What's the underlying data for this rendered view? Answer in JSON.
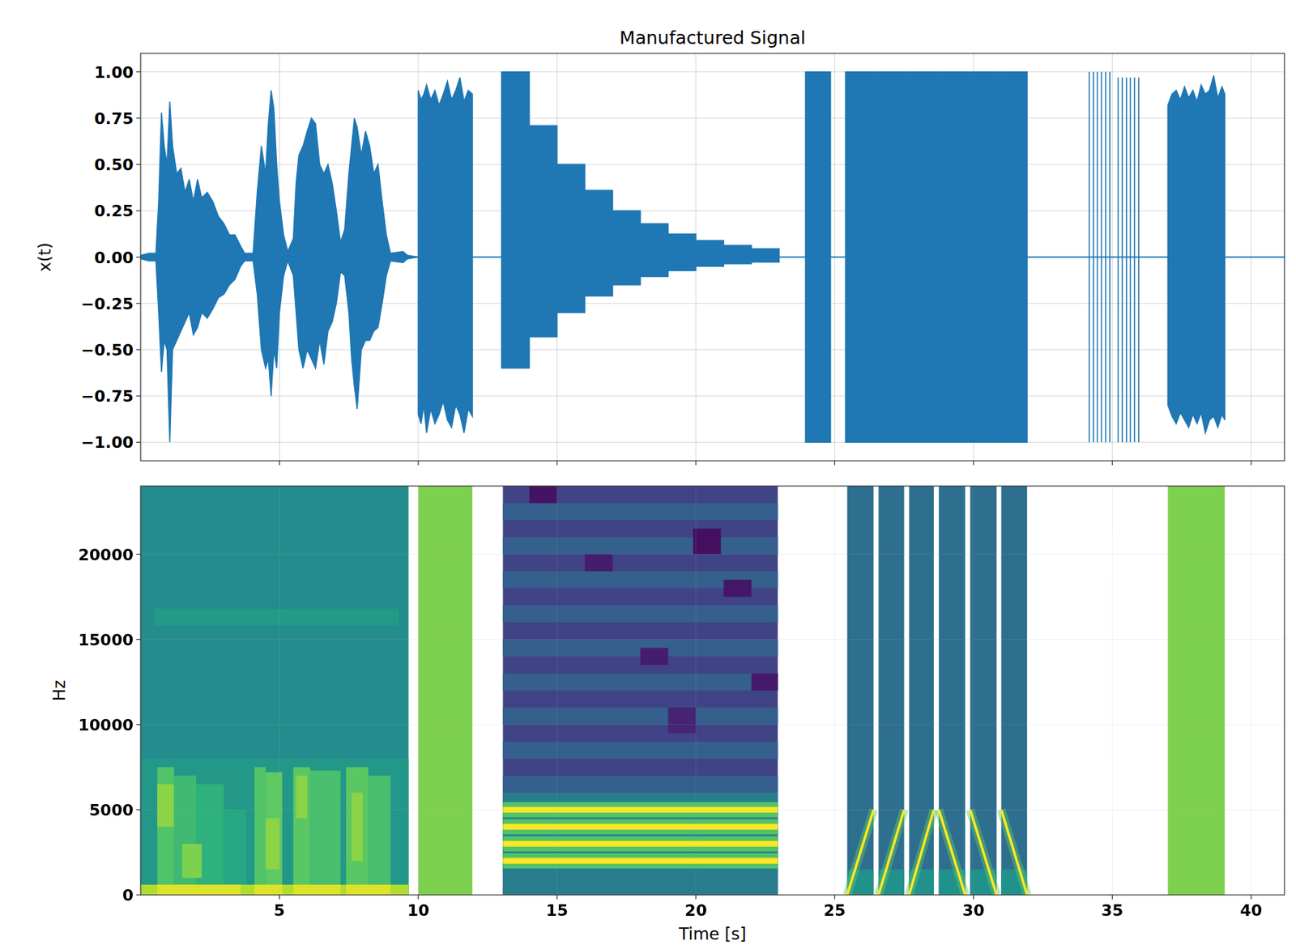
{
  "chart_data": [
    {
      "type": "area",
      "title": "Manufactured Signal",
      "y_label": "x(t)",
      "xlim": [
        0,
        41.2
      ],
      "xticks": [
        5,
        10,
        15,
        20,
        25,
        30,
        35,
        40
      ],
      "ylim": [
        -1.1,
        1.1
      ],
      "yticks": [
        {
          "value": -1,
          "label": "−1.00"
        },
        {
          "value": -0.75,
          "label": "−0.75"
        },
        {
          "value": -0.5,
          "label": "−0.50"
        },
        {
          "value": -0.25,
          "label": "−0.25"
        },
        {
          "value": 0,
          "label": "0.00"
        },
        {
          "value": 0.25,
          "label": "0.25"
        },
        {
          "value": 0.5,
          "label": "0.50"
        },
        {
          "value": 0.75,
          "label": "0.75"
        },
        {
          "value": 1,
          "label": "1.00"
        }
      ],
      "grid": true,
      "tick_labels": "y",
      "color": "#1f77b4",
      "series": [
        {
          "type": "envelope",
          "x": [
            0,
            0.3,
            0.55,
            0.65,
            0.75,
            0.85,
            0.95,
            1.05,
            1.15,
            1.3,
            1.45,
            1.6,
            1.75,
            1.9,
            2.05,
            2.2,
            2.4,
            2.6,
            2.8,
            3.0,
            3.2,
            3.4,
            3.6,
            3.75,
            4.05,
            4.2,
            4.35,
            4.5,
            4.6,
            4.7,
            4.8,
            4.9,
            5.0,
            5.15,
            5.3,
            5.5,
            5.6,
            5.7,
            5.85,
            6.0,
            6.15,
            6.3,
            6.45,
            6.6,
            6.75,
            6.9,
            7.05,
            7.2,
            7.35,
            7.5,
            7.6,
            7.7,
            7.8,
            7.95,
            8.1,
            8.25,
            8.4,
            8.55,
            8.7,
            8.85,
            9.0,
            9.45,
            9.6,
            10.0,
            10.0,
            10.1,
            10.2,
            10.3,
            10.45,
            10.6,
            10.75,
            10.9,
            11.05,
            11.2,
            11.35,
            11.5,
            11.65,
            11.8,
            11.95,
            11.95,
            13,
            13,
            14,
            14,
            15,
            15,
            16,
            16,
            17,
            17,
            18,
            18,
            19,
            19,
            20,
            20,
            21,
            21,
            22,
            22,
            23,
            23,
            23.95,
            23.95,
            24.85,
            24.85,
            25.39,
            25.39,
            26.47,
            26.47,
            26.51,
            26.51,
            27.57,
            27.57,
            27.61,
            27.61,
            28.64,
            28.64,
            28.68,
            28.68,
            29.8,
            29.8,
            29.84,
            29.84,
            30.93,
            30.93,
            30.97,
            30.97,
            31.93,
            31.93,
            37.0,
            37.0,
            37.15,
            37.3,
            37.45,
            37.6,
            37.75,
            37.9,
            38.05,
            38.2,
            38.35,
            38.5,
            38.65,
            38.8,
            38.95,
            39.05,
            39.05,
            41.2
          ],
          "upper": [
            0.01,
            0.02,
            0.02,
            0.3,
            0.78,
            0.6,
            0.5,
            0.84,
            0.6,
            0.45,
            0.48,
            0.35,
            0.42,
            0.3,
            0.42,
            0.32,
            0.35,
            0.3,
            0.22,
            0.18,
            0.12,
            0.12,
            0.06,
            0.02,
            0.02,
            0.35,
            0.6,
            0.45,
            0.72,
            0.9,
            0.8,
            0.5,
            0.3,
            0.12,
            0.03,
            0.1,
            0.4,
            0.55,
            0.6,
            0.68,
            0.75,
            0.72,
            0.5,
            0.45,
            0.5,
            0.4,
            0.25,
            0.08,
            0.15,
            0.45,
            0.6,
            0.75,
            0.7,
            0.55,
            0.68,
            0.6,
            0.45,
            0.5,
            0.3,
            0.12,
            0.02,
            0.03,
            0.01,
            0,
            0.9,
            0.85,
            0.88,
            0.93,
            0.85,
            0.9,
            0.82,
            0.88,
            0.95,
            0.85,
            0.9,
            0.97,
            0.84,
            0.9,
            0.88,
            0,
            0,
            1.0,
            1.0,
            0.71,
            0.71,
            0.5,
            0.5,
            0.36,
            0.36,
            0.25,
            0.25,
            0.18,
            0.18,
            0.125,
            0.125,
            0.09,
            0.09,
            0.063,
            0.063,
            0.045,
            0.045,
            0,
            0,
            1,
            1,
            0,
            0,
            1,
            1,
            0,
            0,
            1,
            1,
            0,
            0,
            1,
            1,
            0,
            0,
            1,
            1,
            0,
            0,
            1,
            1,
            0,
            0,
            1,
            1,
            0,
            0,
            0.82,
            0.88,
            0.9,
            0.85,
            0.92,
            0.86,
            0.9,
            0.84,
            0.93,
            0.88,
            0.9,
            0.98,
            0.86,
            0.92,
            0.88,
            0,
            0
          ],
          "lower": [
            -0.01,
            -0.02,
            -0.02,
            -0.3,
            -0.62,
            -0.45,
            -0.5,
            -1.0,
            -0.5,
            -0.45,
            -0.4,
            -0.35,
            -0.3,
            -0.42,
            -0.38,
            -0.3,
            -0.33,
            -0.28,
            -0.22,
            -0.2,
            -0.15,
            -0.12,
            -0.05,
            -0.02,
            -0.02,
            -0.2,
            -0.5,
            -0.6,
            -0.55,
            -0.75,
            -0.5,
            -0.6,
            -0.3,
            -0.1,
            -0.02,
            -0.1,
            -0.3,
            -0.5,
            -0.6,
            -0.5,
            -0.55,
            -0.6,
            -0.45,
            -0.58,
            -0.4,
            -0.35,
            -0.25,
            -0.08,
            -0.1,
            -0.3,
            -0.55,
            -0.7,
            -0.82,
            -0.5,
            -0.45,
            -0.45,
            -0.4,
            -0.38,
            -0.25,
            -0.1,
            -0.02,
            -0.03,
            -0.01,
            0,
            -0.85,
            -0.9,
            -0.8,
            -0.95,
            -0.82,
            -0.9,
            -0.85,
            -0.78,
            -0.88,
            -0.92,
            -0.8,
            -0.85,
            -0.95,
            -0.82,
            -0.86,
            0,
            0,
            -0.6,
            -0.6,
            -0.43,
            -0.43,
            -0.3,
            -0.3,
            -0.21,
            -0.21,
            -0.15,
            -0.15,
            -0.105,
            -0.105,
            -0.073,
            -0.073,
            -0.05,
            -0.05,
            -0.036,
            -0.036,
            -0.027,
            -0.027,
            0,
            0,
            -1,
            -1,
            0,
            0,
            -1,
            -1,
            0,
            0,
            -1,
            -1,
            0,
            0,
            -1,
            -1,
            0,
            0,
            -1,
            -1,
            0,
            0,
            -1,
            -1,
            0,
            0,
            -1,
            -1,
            0,
            0,
            -0.8,
            -0.86,
            -0.9,
            -0.84,
            -0.88,
            -0.92,
            -0.85,
            -0.9,
            -0.84,
            -0.95,
            -0.88,
            -0.86,
            -0.92,
            -0.85,
            -0.88,
            0,
            0
          ]
        },
        {
          "type": "stem",
          "x": [
            34.17,
            34.32,
            34.46,
            34.61,
            34.76,
            34.91,
            35.21,
            35.36,
            35.51,
            35.65,
            35.8,
            35.95
          ],
          "upper": [
            1,
            1,
            1,
            1,
            1,
            1,
            0.97,
            0.97,
            0.97,
            0.97,
            0.97,
            0.97
          ],
          "lower": [
            -1,
            -1,
            -1,
            -1,
            -1,
            -1,
            -1,
            -1,
            -1,
            -1,
            -1,
            -1
          ]
        }
      ]
    },
    {
      "type": "spectrogram",
      "x_label": "Time [s]",
      "y_label": "Hz",
      "xlim": [
        0,
        41.2
      ],
      "xticks": [
        5,
        10,
        15,
        20,
        25,
        30,
        35,
        40
      ],
      "ylim": [
        0,
        24000
      ],
      "yticks": [
        0,
        5000,
        10000,
        15000,
        20000
      ],
      "grid": true,
      "color": "viridis",
      "zlim": [
        0,
        1
      ],
      "cells": [
        [
          0,
          9.65,
          0,
          24000,
          0.48
        ],
        [
          0,
          9.65,
          0,
          8000,
          0.53
        ],
        [
          0.5,
          9.3,
          15800,
          16800,
          0.54
        ],
        [
          0.6,
          1.2,
          0,
          7500,
          0.72
        ],
        [
          1.2,
          2.0,
          0,
          7000,
          0.68
        ],
        [
          2.0,
          3.0,
          0,
          6500,
          0.64
        ],
        [
          3.0,
          3.8,
          0,
          5000,
          0.6
        ],
        [
          4.1,
          4.5,
          0,
          7500,
          0.72
        ],
        [
          4.5,
          5.1,
          0,
          7200,
          0.75
        ],
        [
          5.5,
          6.1,
          0,
          7500,
          0.74
        ],
        [
          6.1,
          7.2,
          0,
          7300,
          0.7
        ],
        [
          7.4,
          8.2,
          0,
          7500,
          0.74
        ],
        [
          8.2,
          9.0,
          0,
          7000,
          0.7
        ],
        [
          0.6,
          1.2,
          4000,
          6500,
          0.82
        ],
        [
          1.5,
          2.2,
          1000,
          3000,
          0.8
        ],
        [
          4.5,
          5.0,
          1500,
          4500,
          0.82
        ],
        [
          5.6,
          6.0,
          4500,
          7000,
          0.82
        ],
        [
          7.6,
          8.0,
          2000,
          6000,
          0.82
        ],
        [
          0,
          9.65,
          0,
          600,
          0.88
        ],
        [
          0.6,
          3.6,
          0,
          600,
          0.95
        ],
        [
          4.1,
          5.1,
          0,
          600,
          0.95
        ],
        [
          5.5,
          7.2,
          0,
          600,
          0.95
        ],
        [
          7.4,
          9.0,
          0,
          600,
          0.95
        ],
        [
          10.0,
          11.95,
          0,
          24000,
          0.8
        ],
        [
          37.0,
          39.05,
          0,
          24000,
          0.8
        ],
        [
          13.05,
          22.95,
          0,
          24000,
          0.2
        ],
        [
          13.05,
          22.95,
          6000,
          7000,
          0.3
        ],
        [
          13.05,
          22.95,
          8000,
          9000,
          0.3
        ],
        [
          13.05,
          22.95,
          10000,
          11000,
          0.3
        ],
        [
          13.05,
          22.95,
          12000,
          13000,
          0.3
        ],
        [
          13.05,
          22.95,
          14000,
          15000,
          0.3
        ],
        [
          13.05,
          22.95,
          16000,
          17000,
          0.3
        ],
        [
          13.05,
          22.95,
          18000,
          19000,
          0.3
        ],
        [
          13.05,
          22.95,
          20000,
          21000,
          0.3
        ],
        [
          13.05,
          22.95,
          22000,
          23000,
          0.3
        ],
        [
          14,
          15,
          23000,
          24000,
          0.05
        ],
        [
          19.9,
          20.9,
          20000,
          21500,
          0.04
        ],
        [
          18,
          19,
          13500,
          14500,
          0.08
        ],
        [
          19,
          20,
          9500,
          11000,
          0.1
        ],
        [
          21,
          22,
          17500,
          18500,
          0.06
        ],
        [
          16,
          17,
          19000,
          20000,
          0.08
        ],
        [
          22,
          22.95,
          12000,
          13000,
          0.07
        ],
        [
          13.05,
          22.95,
          0,
          6000,
          0.42
        ],
        [
          13.05,
          22.95,
          1550,
          2450,
          0.72
        ],
        [
          13.05,
          22.95,
          2550,
          3450,
          0.72
        ],
        [
          13.05,
          22.95,
          3550,
          4450,
          0.72
        ],
        [
          13.05,
          22.95,
          4550,
          5450,
          0.72
        ],
        [
          13.05,
          22.95,
          1830,
          2170,
          1.0
        ],
        [
          13.05,
          22.95,
          2830,
          3170,
          1.0
        ],
        [
          13.05,
          22.95,
          3830,
          4170,
          1.0
        ],
        [
          13.05,
          22.95,
          4830,
          5170,
          1.0
        ],
        [
          25.45,
          26.4,
          0,
          24000,
          0.36
        ],
        [
          26.58,
          27.5,
          0,
          24000,
          0.36
        ],
        [
          27.68,
          28.57,
          0,
          24000,
          0.36
        ],
        [
          28.75,
          29.7,
          0,
          24000,
          0.36
        ],
        [
          29.88,
          30.83,
          0,
          24000,
          0.36
        ],
        [
          31.0,
          31.93,
          0,
          24000,
          0.36
        ],
        [
          25.45,
          26.4,
          0,
          1500,
          0.5
        ],
        [
          26.58,
          27.5,
          0,
          1500,
          0.5
        ],
        [
          27.68,
          28.57,
          0,
          1500,
          0.5
        ],
        [
          28.75,
          29.7,
          0,
          1500,
          0.5
        ],
        [
          29.88,
          30.83,
          0,
          1500,
          0.5
        ],
        [
          31.0,
          31.93,
          0,
          1500,
          0.5
        ]
      ],
      "chirps": [
        {
          "t": [
            25.45,
            26.4
          ],
          "f": [
            0,
            5000
          ],
          "value": 1
        },
        {
          "t": [
            26.58,
            27.5
          ],
          "f": [
            0,
            5000
          ],
          "value": 1
        },
        {
          "t": [
            27.68,
            28.57
          ],
          "f": [
            0,
            5000
          ],
          "value": 1
        },
        {
          "t": [
            28.75,
            29.7
          ],
          "f": [
            5000,
            0
          ],
          "value": 1
        },
        {
          "t": [
            29.88,
            30.83
          ],
          "f": [
            5000,
            0
          ],
          "value": 1
        },
        {
          "t": [
            31.0,
            31.93
          ],
          "f": [
            5000,
            0
          ],
          "value": 1
        }
      ]
    }
  ]
}
